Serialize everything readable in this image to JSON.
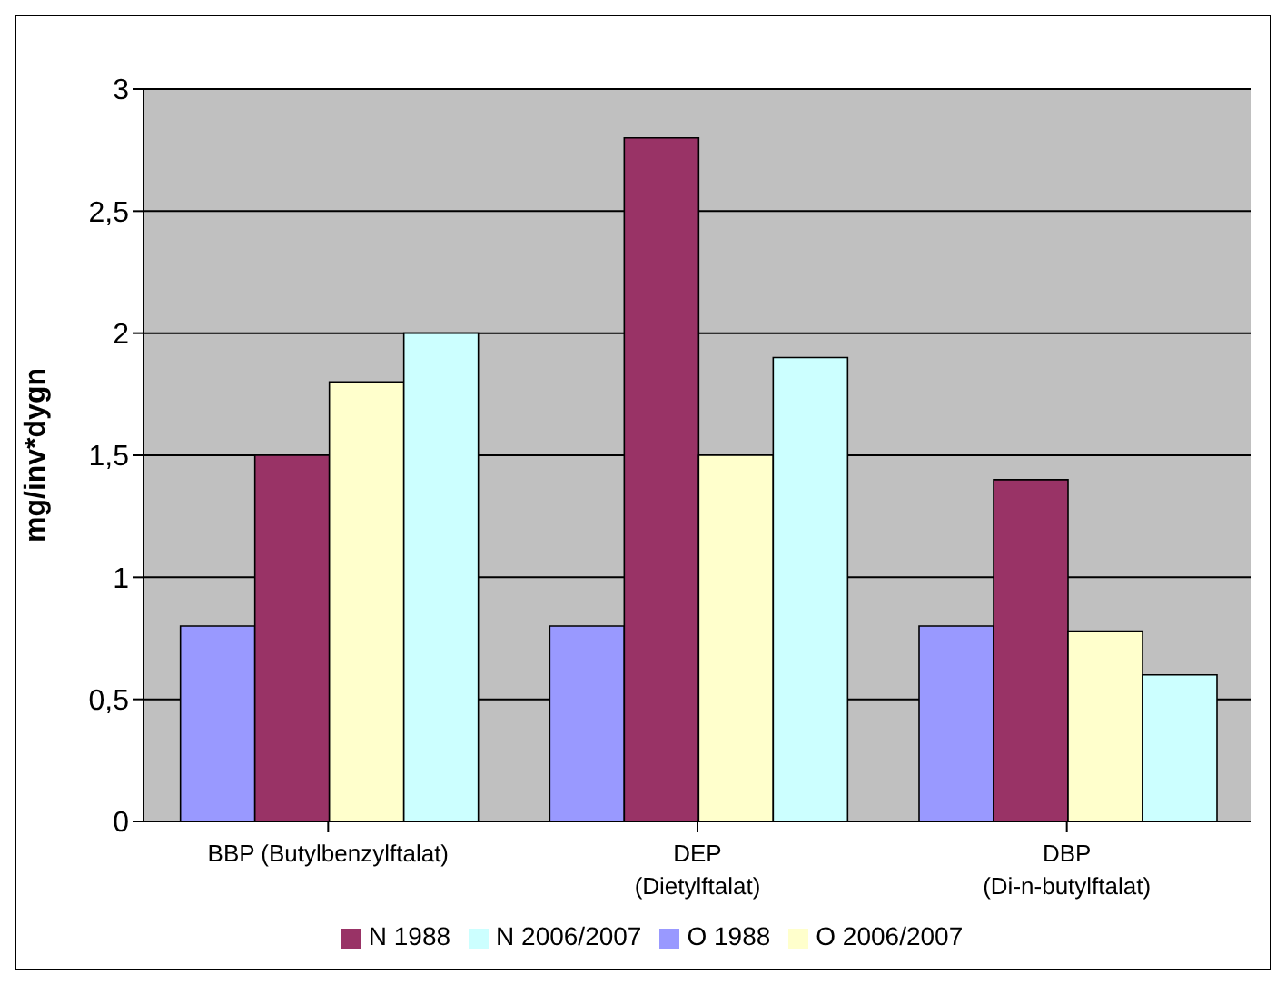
{
  "chart_data": {
    "type": "bar",
    "ylabel": "mg/inv*dygn",
    "categories": [
      "BBP (Butylbenzylftalat)",
      "DEP\n(Dietylftalat)",
      "DBP\n(Di-n-butylftalat)"
    ],
    "series": [
      {
        "name": "O 1988",
        "color": "#9999ff",
        "values": [
          0.8,
          0.8,
          0.8
        ]
      },
      {
        "name": "N 1988",
        "color": "#993366",
        "values": [
          1.5,
          2.8,
          1.4
        ]
      },
      {
        "name": "O 2006/2007",
        "color": "#ffffcc",
        "values": [
          1.8,
          1.5,
          0.78
        ]
      },
      {
        "name": "N 2006/2007",
        "color": "#ccffff",
        "values": [
          2.0,
          1.9,
          0.6
        ]
      }
    ],
    "ylim": [
      0,
      3
    ],
    "yticks": [
      0,
      {
        "value": 0.5,
        "label": "0,5"
      },
      1,
      {
        "value": 1.5,
        "label": "1,5"
      },
      2,
      {
        "value": 2.5,
        "label": "2,5"
      },
      3
    ],
    "grid": "y",
    "legend": "bottom"
  }
}
